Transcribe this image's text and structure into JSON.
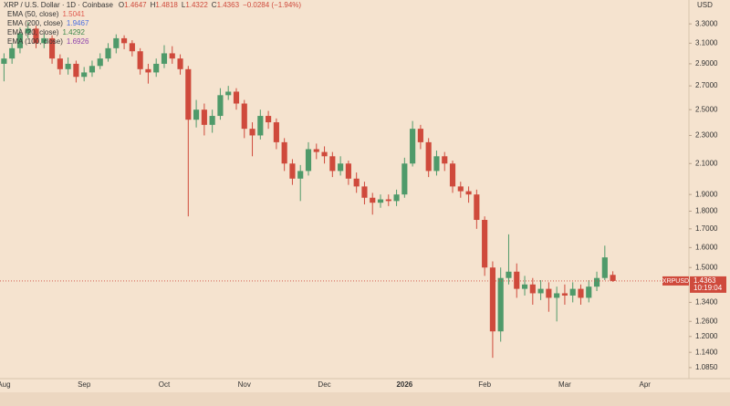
{
  "chart_data": {
    "type": "candlestick",
    "title": "XRP / U.S. Dollar · 1D · Coinbase",
    "ohlc_letters": [
      "O",
      "H",
      "L",
      "C"
    ],
    "change_label": "−0.0284 (−1.94%)",
    "y_axis_unit": "USD",
    "symbol": "XRPUSD",
    "countdown": "10:19:04",
    "log_scale": true,
    "grid": false,
    "up_color": "#4f9a6a",
    "down_color": "#cf4a3c",
    "indicators": [
      {
        "name": "EMA (50, close)",
        "value": 1.5041,
        "color": "#e05a4f"
      },
      {
        "name": "EMA (200, close)",
        "value": 1.9467,
        "color": "#4a6fe0"
      },
      {
        "name": "EMA (20, close)",
        "value": 1.4292,
        "color": "#3f8a4c"
      },
      {
        "name": "EMA (100, close)",
        "value": 1.6926,
        "color": "#8e44ad"
      }
    ],
    "categories": [
      "Aug",
      null,
      null,
      null,
      null,
      null,
      null,
      null,
      null,
      null,
      "Sep",
      null,
      null,
      null,
      null,
      null,
      null,
      null,
      null,
      null,
      "Oct",
      null,
      null,
      null,
      null,
      null,
      null,
      null,
      null,
      null,
      "Nov",
      null,
      null,
      null,
      null,
      null,
      null,
      null,
      null,
      null,
      "Dec",
      null,
      null,
      null,
      null,
      null,
      null,
      null,
      null,
      null,
      "2026",
      null,
      null,
      null,
      null,
      null,
      null,
      null,
      null,
      null,
      "Feb",
      null,
      null,
      null,
      null,
      null,
      null,
      null,
      null,
      null,
      "Mar",
      null,
      null,
      null,
      null,
      null,
      null,
      null,
      null,
      null,
      "Apr",
      null,
      null,
      null,
      null,
      null
    ],
    "open": [
      2.9,
      2.95,
      3.05,
      3.2,
      3.25,
      3.1,
      3.15,
      2.95,
      2.85,
      2.9,
      2.78,
      2.82,
      2.88,
      2.95,
      3.05,
      3.15,
      3.1,
      3.02,
      2.85,
      2.82,
      2.9,
      3.0,
      2.95,
      2.85,
      2.42,
      2.5,
      2.38,
      2.45,
      2.62,
      2.65,
      2.55,
      2.35,
      2.3,
      2.45,
      2.4,
      2.25,
      2.1,
      2.0,
      2.05,
      2.2,
      2.18,
      2.15,
      2.05,
      2.1,
      2.0,
      1.95,
      1.88,
      1.85,
      1.87,
      1.86,
      1.9,
      2.1,
      2.35,
      2.25,
      2.05,
      2.15,
      2.1,
      1.95,
      1.92,
      1.9,
      1.75,
      1.5,
      1.22,
      1.45,
      1.48,
      1.4,
      1.42,
      1.38,
      1.4,
      1.36,
      1.38,
      1.37,
      1.4,
      1.36,
      1.41,
      1.45,
      1.4647,
      null,
      null,
      null,
      null,
      null,
      null,
      null,
      null,
      null
    ],
    "high": [
      3.0,
      3.1,
      3.26,
      3.32,
      3.28,
      3.2,
      3.18,
      2.99,
      2.96,
      2.93,
      2.87,
      2.93,
      3.0,
      3.1,
      3.19,
      3.18,
      3.13,
      3.05,
      2.9,
      2.95,
      3.08,
      3.07,
      2.99,
      2.88,
      2.58,
      2.55,
      2.5,
      2.68,
      2.7,
      2.68,
      2.58,
      2.4,
      2.5,
      2.49,
      2.43,
      2.28,
      2.13,
      2.09,
      2.25,
      2.24,
      2.22,
      2.18,
      2.15,
      2.12,
      2.04,
      1.98,
      1.91,
      1.9,
      1.9,
      1.93,
      2.14,
      2.41,
      2.38,
      2.28,
      2.19,
      2.18,
      2.12,
      1.98,
      1.95,
      1.93,
      1.77,
      1.53,
      1.5,
      1.67,
      1.52,
      1.46,
      1.45,
      1.44,
      1.43,
      1.41,
      1.42,
      1.43,
      1.42,
      1.44,
      1.48,
      1.61,
      1.4818,
      null,
      null,
      null,
      null,
      null,
      null,
      null,
      null,
      null
    ],
    "low": [
      2.74,
      2.9,
      3.0,
      3.15,
      3.05,
      3.05,
      2.9,
      2.8,
      2.8,
      2.73,
      2.74,
      2.78,
      2.85,
      2.92,
      3.0,
      3.04,
      2.97,
      2.8,
      2.72,
      2.78,
      2.86,
      2.9,
      2.8,
      1.77,
      2.36,
      2.3,
      2.32,
      2.42,
      2.58,
      2.5,
      2.28,
      2.15,
      2.27,
      2.35,
      2.2,
      2.05,
      1.96,
      1.86,
      2.02,
      2.13,
      2.1,
      2.01,
      2.02,
      1.96,
      1.91,
      1.84,
      1.78,
      1.82,
      1.83,
      1.83,
      1.88,
      2.08,
      2.2,
      2.01,
      2.02,
      2.05,
      1.91,
      1.88,
      1.85,
      1.7,
      1.46,
      1.12,
      1.18,
      1.42,
      1.36,
      1.37,
      1.33,
      1.35,
      1.3,
      1.26,
      1.33,
      1.34,
      1.33,
      1.34,
      1.39,
      1.44,
      1.4322,
      null,
      null,
      null,
      null,
      null,
      null,
      null,
      null,
      null
    ],
    "close": [
      2.95,
      3.05,
      3.2,
      3.25,
      3.1,
      3.15,
      2.95,
      2.85,
      2.9,
      2.78,
      2.82,
      2.88,
      2.95,
      3.05,
      3.15,
      3.1,
      3.02,
      2.85,
      2.82,
      2.9,
      3.0,
      2.95,
      2.85,
      2.42,
      2.5,
      2.38,
      2.45,
      2.62,
      2.65,
      2.55,
      2.35,
      2.3,
      2.45,
      2.4,
      2.25,
      2.1,
      2.0,
      2.05,
      2.2,
      2.18,
      2.15,
      2.05,
      2.1,
      2.0,
      1.95,
      1.88,
      1.85,
      1.87,
      1.86,
      1.9,
      2.1,
      2.35,
      2.25,
      2.05,
      2.15,
      2.1,
      1.95,
      1.92,
      1.9,
      1.75,
      1.5,
      1.22,
      1.45,
      1.48,
      1.4,
      1.42,
      1.38,
      1.4,
      1.36,
      1.38,
      1.37,
      1.4,
      1.36,
      1.41,
      1.45,
      1.55,
      1.4363,
      null,
      null,
      null,
      null,
      null,
      null,
      null,
      null,
      null
    ],
    "ylim": [
      1.047,
      3.565
    ],
    "yticks": [
      {
        "value": 3.3,
        "label": "3.3000"
      },
      {
        "value": 3.1,
        "label": "3.1000"
      },
      {
        "value": 2.9,
        "label": "2.9000"
      },
      {
        "value": 2.7,
        "label": "2.7000"
      },
      {
        "value": 2.5,
        "label": "2.5000"
      },
      {
        "value": 2.3,
        "label": "2.3000"
      },
      {
        "value": 2.1,
        "label": "2.1000"
      },
      {
        "value": 1.9,
        "label": "1.9000"
      },
      {
        "value": 1.8,
        "label": "1.8000"
      },
      {
        "value": 1.7,
        "label": "1.7000"
      },
      {
        "value": 1.6,
        "label": "1.6000"
      },
      {
        "value": 1.5,
        "label": "1.5000"
      },
      {
        "value": 1.34,
        "label": "1.3400"
      },
      {
        "value": 1.26,
        "label": "1.2600"
      },
      {
        "value": 1.2,
        "label": "1.2000"
      },
      {
        "value": 1.14,
        "label": "1.1400"
      },
      {
        "value": 1.085,
        "label": "1.0850"
      }
    ]
  }
}
